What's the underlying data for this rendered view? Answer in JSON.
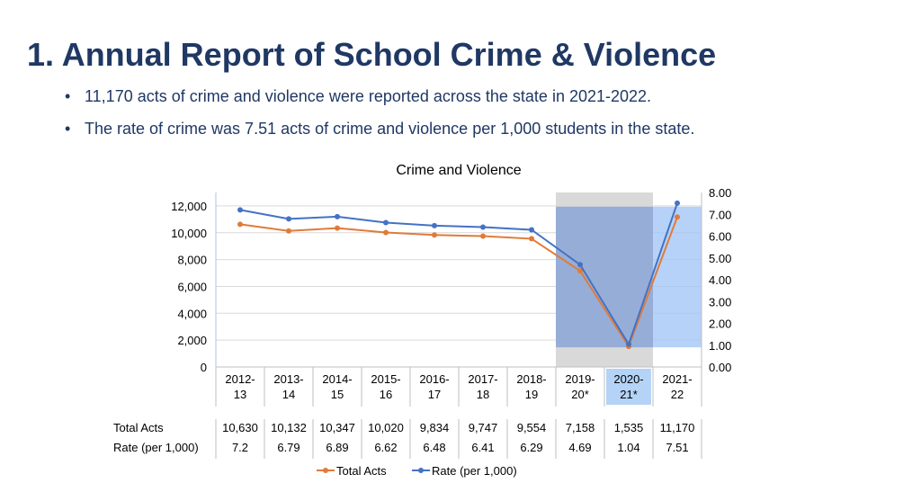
{
  "slide": {
    "title": "1. Annual Report of School Crime & Violence",
    "bullets": [
      "11,170 acts of crime and violence were reported across the state in 2021-2022.",
      "The rate of crime was 7.51 acts of crime and violence per 1,000 students in the state."
    ]
  },
  "colors": {
    "title": "#1f3864",
    "total_acts": "#e07b39",
    "rate": "#4472c4",
    "gray_band": "#d9d9d9",
    "blue_band": "#9dc3f5",
    "highlight_cell": "#b4d3f7"
  },
  "chart_data": {
    "type": "line",
    "title": "Crime and Violence",
    "categories": [
      [
        "2012-",
        "13"
      ],
      [
        "2013-",
        "14"
      ],
      [
        "2014-",
        "15"
      ],
      [
        "2015-",
        "16"
      ],
      [
        "2016-",
        "17"
      ],
      [
        "2017-",
        "18"
      ],
      [
        "2018-",
        "19"
      ],
      [
        "2019-",
        "20*"
      ],
      [
        "2020-",
        "21*"
      ],
      [
        "2021-",
        "22"
      ]
    ],
    "series": [
      {
        "name": "Total Acts",
        "axis": "left",
        "color": "#e07b39",
        "values": [
          10630,
          10132,
          10347,
          10020,
          9834,
          9747,
          9554,
          7158,
          1535,
          11170
        ],
        "labels": [
          "10,630",
          "10,132",
          "10,347",
          "10,020",
          "9,834",
          "9,747",
          "9,554",
          "7,158",
          "1,535",
          "11,170"
        ]
      },
      {
        "name": "Rate (per 1,000)",
        "axis": "right",
        "color": "#4472c4",
        "values": [
          7.2,
          6.79,
          6.89,
          6.62,
          6.48,
          6.41,
          6.29,
          4.69,
          1.04,
          7.51
        ],
        "labels": [
          "7.2",
          "6.79",
          "6.89",
          "6.62",
          "6.48",
          "6.41",
          "6.29",
          "4.69",
          "1.04",
          "7.51"
        ]
      }
    ],
    "y_left": {
      "min": 0,
      "max": 13000,
      "ticks": [
        0,
        2000,
        4000,
        6000,
        8000,
        10000,
        12000
      ],
      "tick_labels": [
        "0",
        "2,000",
        "4,000",
        "6,000",
        "8,000",
        "10,000",
        "12,000"
      ]
    },
    "y_right": {
      "min": 0,
      "max": 8,
      "ticks": [
        0,
        1,
        2,
        3,
        4,
        5,
        6,
        7,
        8
      ],
      "tick_labels": [
        "0.00",
        "1.00",
        "2.00",
        "3.00",
        "4.00",
        "5.00",
        "6.00",
        "7.00",
        "8.00"
      ]
    },
    "highlighted_category": 8,
    "gray_band": {
      "category": 7,
      "right_from": 0,
      "right_to": 8
    },
    "blue_band": {
      "category": 7,
      "right_from": 0.9,
      "right_to": 7.35
    },
    "blue_band2": {
      "category": 9,
      "right_from": 0.9,
      "right_to": 7.35
    },
    "grid": true,
    "legend_position": "bottom"
  }
}
